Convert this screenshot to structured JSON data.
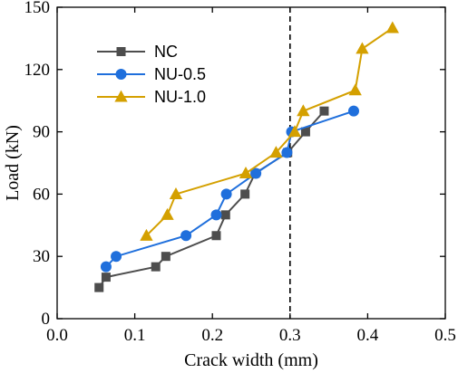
{
  "chart_data": {
    "type": "line",
    "title": "",
    "xlabel": "Crack width (mm)",
    "ylabel": "Load (kN)",
    "xlim": [
      0.0,
      0.5
    ],
    "ylim": [
      0,
      150
    ],
    "xticks": [
      "0.0",
      "0.1",
      "0.2",
      "0.3",
      "0.4",
      "0.5"
    ],
    "yticks": [
      "0",
      "30",
      "60",
      "90",
      "120",
      "150"
    ],
    "grid": false,
    "legend_position": "top-left",
    "reference_line": {
      "x": 0.3,
      "style": "dashed"
    },
    "series": [
      {
        "name": "NC",
        "color": "#4d4d4d",
        "marker": "square",
        "x": [
          0.054,
          0.063,
          0.127,
          0.14,
          0.205,
          0.217,
          0.242,
          0.255,
          0.297,
          0.32,
          0.344
        ],
        "y": [
          15,
          20,
          25,
          30,
          40,
          50,
          60,
          70,
          80,
          90,
          100
        ]
      },
      {
        "name": "NU-0.5",
        "color": "#1f6fdc",
        "marker": "circle",
        "x": [
          0.063,
          0.076,
          0.166,
          0.205,
          0.218,
          0.256,
          0.296,
          0.302,
          0.382
        ],
        "y": [
          25,
          30,
          40,
          50,
          60,
          70,
          80,
          90,
          100
        ]
      },
      {
        "name": "NU-1.0",
        "color": "#d4a000",
        "marker": "triangle",
        "x": [
          0.115,
          0.142,
          0.153,
          0.243,
          0.282,
          0.306,
          0.317,
          0.384,
          0.393,
          0.432
        ],
        "y": [
          40,
          50,
          60,
          70,
          80,
          90,
          100,
          110,
          130,
          140
        ]
      }
    ]
  }
}
